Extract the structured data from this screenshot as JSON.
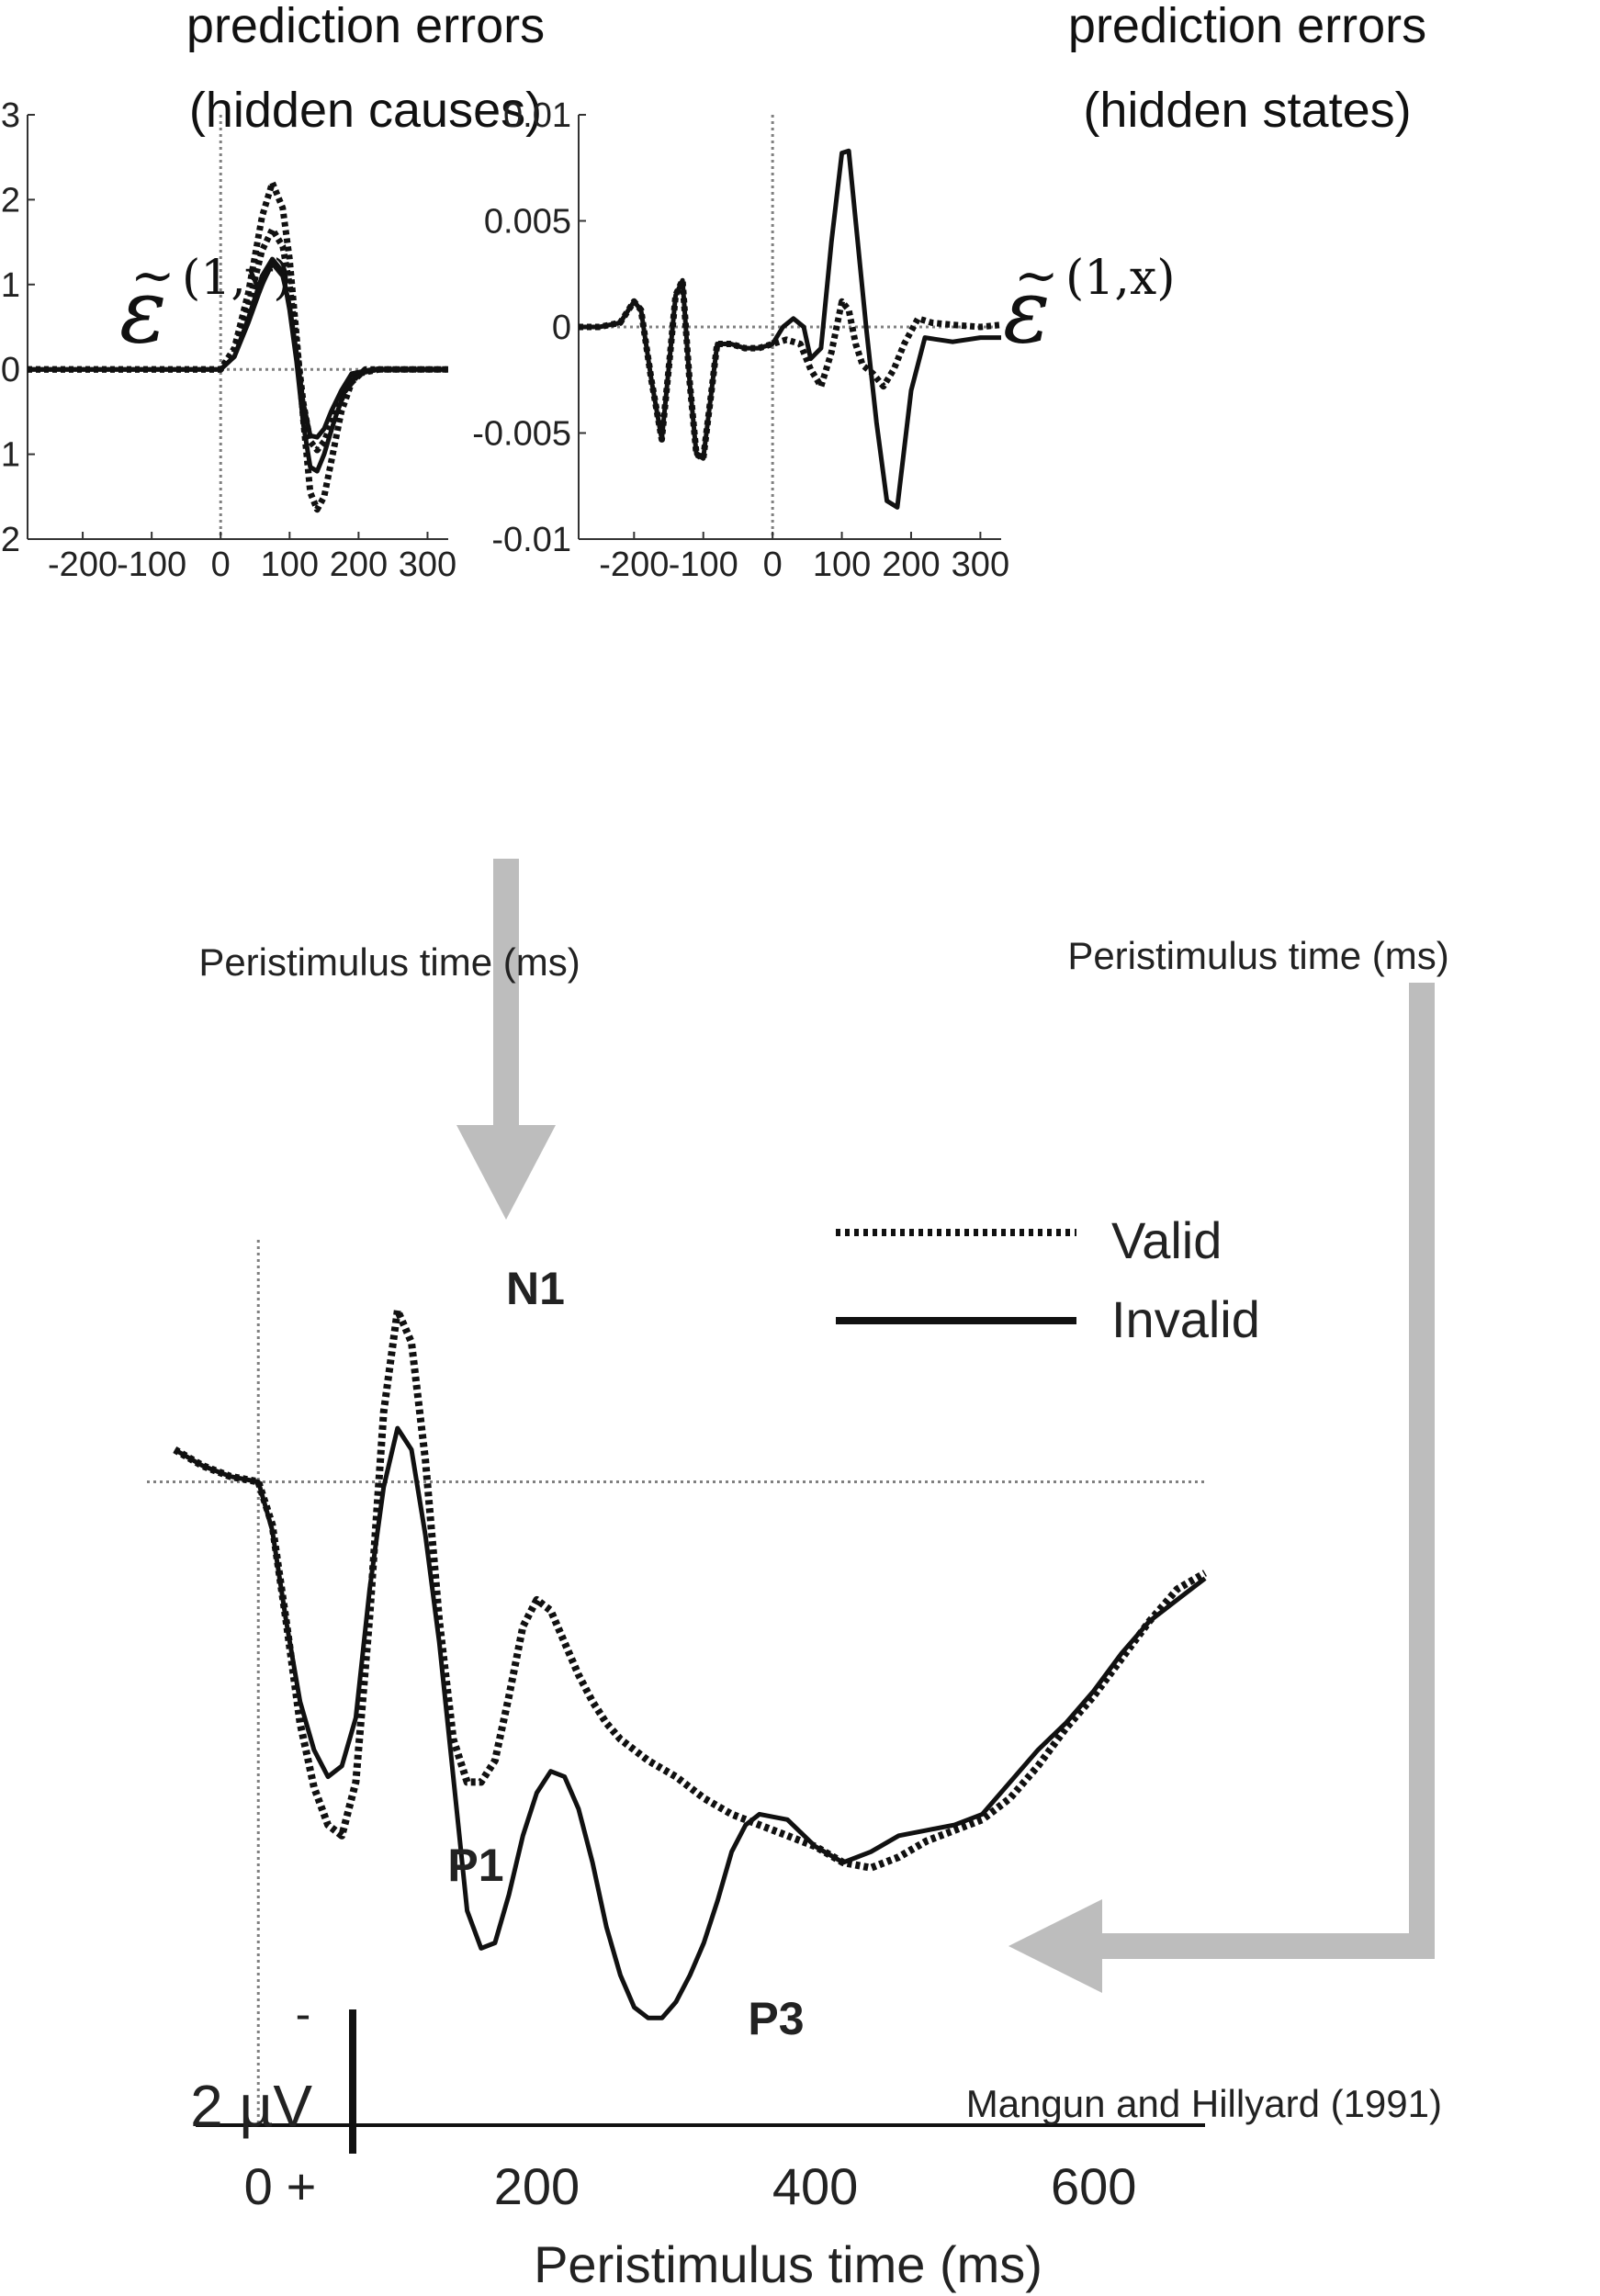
{
  "chart_data": [
    {
      "type": "line",
      "title": "prediction errors\n(hidden causes)",
      "title_lines": [
        "prediction errors",
        "(hidden causes)"
      ],
      "symbol": "ε̃(1,v)",
      "symbol_main": "ε",
      "symbol_tilde": "~",
      "symbol_sup": "(1,v)",
      "xlabel": "Peristimulus time (ms)",
      "ylabel": "",
      "xlim": [
        -280,
        330
      ],
      "ylim": [
        -2,
        3
      ],
      "xticks": [
        -200,
        -100,
        0,
        100,
        200,
        300
      ],
      "xtick_labels": [
        "-200",
        "-100",
        "0",
        "100",
        "200",
        "300"
      ],
      "yticks": [
        -2,
        -1,
        0,
        1,
        2,
        3
      ],
      "ytick_labels": [
        "-2",
        "-1",
        "0",
        "1",
        "2",
        "3"
      ],
      "reference_lines": {
        "x": 0,
        "y": 0
      },
      "grid": false,
      "series": [
        {
          "name": "Valid",
          "style": "dotted",
          "x": [
            -280,
            -200,
            -100,
            0,
            20,
            40,
            60,
            75,
            90,
            100,
            110,
            120,
            130,
            140,
            150,
            160,
            175,
            190,
            210,
            240,
            330
          ],
          "y": [
            0,
            0,
            0,
            0,
            0.25,
            0.9,
            1.8,
            2.2,
            1.9,
            1.3,
            0.4,
            -0.6,
            -1.45,
            -1.65,
            -1.5,
            -1.1,
            -0.5,
            -0.15,
            0,
            0,
            0
          ]
        },
        {
          "name": "Valid",
          "style": "dotted",
          "x": [
            -280,
            -200,
            -100,
            0,
            20,
            40,
            60,
            75,
            90,
            100,
            110,
            120,
            130,
            140,
            150,
            165,
            180,
            200,
            230,
            330
          ],
          "y": [
            0,
            0,
            0,
            0,
            0.2,
            0.75,
            1.4,
            1.65,
            1.45,
            1.0,
            0.3,
            -0.4,
            -0.85,
            -0.95,
            -0.85,
            -0.55,
            -0.25,
            -0.05,
            0,
            0
          ]
        },
        {
          "name": "Invalid",
          "style": "solid",
          "x": [
            -280,
            -200,
            -100,
            0,
            20,
            40,
            60,
            75,
            90,
            100,
            110,
            120,
            130,
            140,
            150,
            165,
            180,
            200,
            230,
            330
          ],
          "y": [
            0,
            0,
            0,
            0,
            0.15,
            0.6,
            1.1,
            1.3,
            1.15,
            0.7,
            0.1,
            -0.65,
            -1.15,
            -1.2,
            -1.0,
            -0.6,
            -0.25,
            -0.05,
            0,
            0
          ]
        },
        {
          "name": "Invalid",
          "style": "solid",
          "x": [
            -280,
            -200,
            -100,
            0,
            20,
            40,
            60,
            75,
            90,
            100,
            110,
            120,
            130,
            140,
            150,
            160,
            175,
            190,
            220,
            330
          ],
          "y": [
            0,
            0,
            0,
            0,
            0.15,
            0.55,
            1.0,
            1.25,
            1.1,
            0.75,
            0.2,
            -0.4,
            -0.78,
            -0.8,
            -0.7,
            -0.5,
            -0.25,
            -0.05,
            0,
            0
          ]
        }
      ]
    },
    {
      "type": "line",
      "title": "prediction errors\n(hidden states)",
      "title_lines": [
        "prediction errors",
        "(hidden states)"
      ],
      "symbol": "ε̃(1,x)",
      "symbol_main": "ε",
      "symbol_tilde": "~",
      "symbol_sup": "(1,x)",
      "xlabel": "Peristimulus time (ms)",
      "ylabel": "",
      "xlim": [
        -280,
        330
      ],
      "ylim": [
        -0.01,
        0.01
      ],
      "xticks": [
        -200,
        -100,
        0,
        100,
        200,
        300
      ],
      "xtick_labels": [
        "-200",
        "-100",
        "0",
        "100",
        "200",
        "300"
      ],
      "yticks": [
        -0.01,
        -0.005,
        0,
        0.005,
        0.01
      ],
      "ytick_labels": [
        "-0.01",
        "-0.005",
        "0",
        "0.005",
        "0.01"
      ],
      "reference_lines": {
        "x": 0,
        "y": 0
      },
      "grid": false,
      "series": [
        {
          "name": "Valid",
          "style": "dotted",
          "x": [
            -280,
            -250,
            -220,
            -200,
            -190,
            -175,
            -160,
            -150,
            -140,
            -130,
            -120,
            -110,
            -100,
            -90,
            -80,
            -60,
            -40,
            -20,
            0,
            20,
            40,
            55,
            70,
            85,
            100,
            110,
            120,
            130,
            145,
            160,
            175,
            190,
            210,
            230,
            260,
            300,
            330
          ],
          "y": [
            0,
            0,
            0.0002,
            0.0012,
            0.0008,
            -0.0025,
            -0.0053,
            -0.002,
            0.0015,
            0.0022,
            -0.0025,
            -0.006,
            -0.0062,
            -0.0035,
            -0.0008,
            -0.0008,
            -0.001,
            -0.001,
            -0.0008,
            -0.0006,
            -0.0008,
            -0.002,
            -0.0028,
            -0.0012,
            0.0012,
            0.0008,
            -0.0008,
            -0.0018,
            -0.0022,
            -0.0028,
            -0.002,
            -0.0008,
            0.0004,
            0.0002,
            0.0001,
            0,
            0.0001
          ]
        },
        {
          "name": "Invalid",
          "style": "solid",
          "x": [
            -280,
            -250,
            -220,
            -200,
            -190,
            -175,
            -160,
            -150,
            -140,
            -130,
            -120,
            -110,
            -100,
            -90,
            -80,
            -60,
            -40,
            -20,
            0,
            15,
            30,
            45,
            55,
            70,
            85,
            100,
            110,
            120,
            135,
            150,
            165,
            180,
            200,
            220,
            260,
            300,
            330
          ],
          "y": [
            0,
            0,
            0.0002,
            0.0012,
            0.0008,
            -0.0025,
            -0.0053,
            -0.002,
            0.0015,
            0.0022,
            -0.0025,
            -0.006,
            -0.0062,
            -0.0035,
            -0.0008,
            -0.0008,
            -0.001,
            -0.001,
            -0.0008,
            0,
            0.0004,
            0,
            -0.0015,
            -0.001,
            0.004,
            0.0082,
            0.0083,
            0.005,
            0,
            -0.0045,
            -0.0082,
            -0.0085,
            -0.003,
            -0.0005,
            -0.0007,
            -0.0005,
            -0.0005
          ]
        }
      ]
    },
    {
      "type": "line",
      "title": "",
      "xlabel": "Peristimulus time (ms)",
      "ylabel": "",
      "xlim": [
        -80,
        680
      ],
      "ylim": [
        -12,
        4
      ],
      "xticks": [
        0,
        200,
        400,
        600
      ],
      "xtick_labels": [
        "0",
        "200",
        "400",
        "600"
      ],
      "scale_bar": {
        "label": "2 µV",
        "value_uV": 2,
        "negative_label": "-",
        "positive_label": "+"
      },
      "polarity": "negative up",
      "reference_lines": {
        "x": 0,
        "y": 0
      },
      "grid": false,
      "legend": {
        "placement": "top-right",
        "entries": [
          {
            "name": "Valid",
            "style": "dotted"
          },
          {
            "name": "Invalid",
            "style": "solid"
          }
        ]
      },
      "annotations": [
        {
          "text": "N1",
          "x": 105,
          "y": 3.2
        },
        {
          "text": "P1",
          "x": 55,
          "y": -7.6
        },
        {
          "text": "P3",
          "x": 320,
          "y": -10.2
        }
      ],
      "citation": "Mangun and Hillyard (1991)",
      "series": [
        {
          "name": "Valid",
          "style": "dotted",
          "x": [
            -60,
            -40,
            -20,
            0,
            10,
            20,
            30,
            40,
            50,
            60,
            70,
            80,
            90,
            100,
            110,
            120,
            130,
            140,
            150,
            160,
            170,
            180,
            190,
            200,
            210,
            220,
            230,
            240,
            250,
            260,
            280,
            300,
            320,
            340,
            360,
            380,
            400,
            420,
            440,
            460,
            480,
            500,
            520,
            540,
            560,
            580,
            600,
            620,
            640,
            660,
            680
          ],
          "y": [
            0.6,
            0.3,
            0.1,
            0,
            -0.8,
            -2.6,
            -4.5,
            -5.7,
            -6.4,
            -6.6,
            -5.6,
            -2.5,
            1.3,
            3.2,
            2.6,
            0.4,
            -2.6,
            -4.8,
            -5.6,
            -5.6,
            -5.2,
            -4.0,
            -2.7,
            -2.2,
            -2.4,
            -3.0,
            -3.6,
            -4.1,
            -4.5,
            -4.8,
            -5.2,
            -5.5,
            -5.9,
            -6.2,
            -6.4,
            -6.6,
            -6.8,
            -7.1,
            -7.2,
            -7.0,
            -6.7,
            -6.5,
            -6.3,
            -5.9,
            -5.3,
            -4.6,
            -4.0,
            -3.3,
            -2.6,
            -2.0,
            -1.7
          ]
        },
        {
          "name": "Invalid",
          "style": "solid",
          "x": [
            -60,
            -40,
            -20,
            0,
            10,
            20,
            30,
            40,
            50,
            60,
            70,
            80,
            90,
            100,
            110,
            120,
            130,
            140,
            150,
            160,
            170,
            180,
            190,
            200,
            210,
            220,
            230,
            240,
            250,
            260,
            270,
            280,
            290,
            300,
            310,
            320,
            330,
            340,
            350,
            360,
            380,
            400,
            420,
            440,
            460,
            480,
            500,
            520,
            540,
            560,
            580,
            600,
            620,
            640,
            660,
            680
          ],
          "y": [
            0.6,
            0.3,
            0.1,
            0,
            -0.9,
            -2.6,
            -4.1,
            -5.0,
            -5.5,
            -5.3,
            -4.4,
            -2.0,
            -0.1,
            1.0,
            0.6,
            -1.0,
            -3.0,
            -5.5,
            -8.0,
            -8.7,
            -8.6,
            -7.7,
            -6.6,
            -5.8,
            -5.4,
            -5.5,
            -6.1,
            -7.1,
            -8.3,
            -9.2,
            -9.8,
            -10.0,
            -10.0,
            -9.7,
            -9.2,
            -8.6,
            -7.8,
            -6.9,
            -6.4,
            -6.2,
            -6.3,
            -6.8,
            -7.1,
            -6.9,
            -6.6,
            -6.5,
            -6.4,
            -6.2,
            -5.6,
            -5.0,
            -4.5,
            -3.9,
            -3.2,
            -2.6,
            -2.2,
            -1.8
          ]
        }
      ]
    }
  ],
  "colors": {
    "line": "#111111",
    "reference_line": "#808080",
    "arrow": "#bdbdbd",
    "text": "#111111"
  }
}
